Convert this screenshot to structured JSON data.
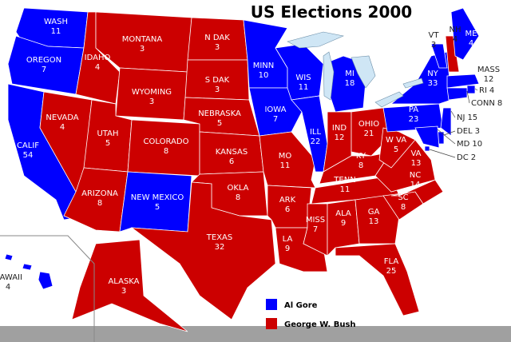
{
  "title": "US Elections 2000",
  "legend": [
    {
      "name": "Al Gore",
      "color": "#0000ff"
    },
    {
      "name": "George W. Bush",
      "color": "#cc0000"
    }
  ],
  "states": [
    {
      "name": "WASH",
      "votes": 11,
      "color": "#0000ff"
    },
    {
      "name": "OREGON",
      "votes": 7,
      "color": "#0000ff"
    },
    {
      "name": "CALIF",
      "votes": 54,
      "color": "#0000ff"
    },
    {
      "name": "NEVADA",
      "votes": 4,
      "color": "#cc0000"
    },
    {
      "name": "IDAHO",
      "votes": 4,
      "color": "#cc0000"
    },
    {
      "name": "MONTANA",
      "votes": 3,
      "color": "#cc0000"
    },
    {
      "name": "WYOMING",
      "votes": 3,
      "color": "#cc0000"
    },
    {
      "name": "UTAH",
      "votes": 5,
      "color": "#cc0000"
    },
    {
      "name": "COLORADO",
      "votes": 8,
      "color": "#cc0000"
    },
    {
      "name": "ARIZONA",
      "votes": 8,
      "color": "#cc0000"
    },
    {
      "name": "NEW MEXICO",
      "votes": 5,
      "color": "#0000ff"
    },
    {
      "name": "N DAK",
      "votes": 3,
      "color": "#cc0000"
    },
    {
      "name": "S DAK",
      "votes": 3,
      "color": "#cc0000"
    },
    {
      "name": "NEBRASKA",
      "votes": 5,
      "color": "#cc0000"
    },
    {
      "name": "KANSAS",
      "votes": 6,
      "color": "#cc0000"
    },
    {
      "name": "OKLA",
      "votes": 8,
      "color": "#cc0000"
    },
    {
      "name": "TEXAS",
      "votes": 32,
      "color": "#cc0000"
    },
    {
      "name": "MINN",
      "votes": 10,
      "color": "#0000ff"
    },
    {
      "name": "IOWA",
      "votes": 7,
      "color": "#0000ff"
    },
    {
      "name": "MO",
      "votes": 11,
      "color": "#cc0000"
    },
    {
      "name": "ARK",
      "votes": 6,
      "color": "#cc0000"
    },
    {
      "name": "LA",
      "votes": 9,
      "color": "#cc0000"
    },
    {
      "name": "WIS",
      "votes": 11,
      "color": "#0000ff"
    },
    {
      "name": "ILL",
      "votes": 22,
      "color": "#0000ff"
    },
    {
      "name": "MI",
      "votes": 18,
      "color": "#0000ff"
    },
    {
      "name": "IND",
      "votes": 12,
      "color": "#cc0000"
    },
    {
      "name": "OHIO",
      "votes": 21,
      "color": "#cc0000"
    },
    {
      "name": "KY",
      "votes": 8,
      "color": "#cc0000"
    },
    {
      "name": "TENN",
      "votes": 11,
      "color": "#cc0000"
    },
    {
      "name": "MISS",
      "votes": 7,
      "color": "#cc0000"
    },
    {
      "name": "ALA",
      "votes": 9,
      "color": "#cc0000"
    },
    {
      "name": "GA",
      "votes": 13,
      "color": "#cc0000"
    },
    {
      "name": "FLA",
      "votes": 25,
      "color": "#cc0000"
    },
    {
      "name": "SC",
      "votes": 8,
      "color": "#cc0000"
    },
    {
      "name": "NC",
      "votes": 14,
      "color": "#cc0000"
    },
    {
      "name": "VA",
      "votes": 13,
      "color": "#cc0000"
    },
    {
      "name": "W VA",
      "votes": 5,
      "color": "#cc0000"
    },
    {
      "name": "PA",
      "votes": 23,
      "color": "#0000ff"
    },
    {
      "name": "NY",
      "votes": 33,
      "color": "#0000ff"
    },
    {
      "name": "VT",
      "votes": 3,
      "color": "#0000ff"
    },
    {
      "name": "NH",
      "votes": 4,
      "color": "#cc0000"
    },
    {
      "name": "ME",
      "votes": 4,
      "color": "#0000ff"
    },
    {
      "name": "MASS",
      "votes": 12,
      "color": "#0000ff"
    },
    {
      "name": "RI",
      "votes": 4,
      "color": "#0000ff"
    },
    {
      "name": "CONN",
      "votes": 8,
      "color": "#0000ff"
    },
    {
      "name": "NJ",
      "votes": 15,
      "color": "#0000ff"
    },
    {
      "name": "DEL",
      "votes": 3,
      "color": "#0000ff"
    },
    {
      "name": "MD",
      "votes": 10,
      "color": "#0000ff"
    },
    {
      "name": "DC",
      "votes": 2,
      "color": "#0000ff"
    },
    {
      "name": "ALASKA",
      "votes": 3,
      "color": "#cc0000"
    },
    {
      "name": "HAWAII",
      "votes": 4,
      "color": "#0000ff"
    }
  ]
}
